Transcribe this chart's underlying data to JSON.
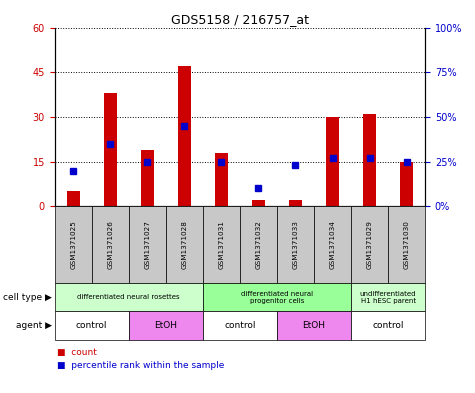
{
  "title": "GDS5158 / 216757_at",
  "samples": [
    "GSM1371025",
    "GSM1371026",
    "GSM1371027",
    "GSM1371028",
    "GSM1371031",
    "GSM1371032",
    "GSM1371033",
    "GSM1371034",
    "GSM1371029",
    "GSM1371030"
  ],
  "red_values": [
    5,
    38,
    19,
    47,
    18,
    2,
    2,
    30,
    31,
    15
  ],
  "blue_values_pct": [
    20,
    35,
    25,
    45,
    25,
    10,
    23,
    27,
    27,
    25
  ],
  "red_ylim": [
    0,
    60
  ],
  "blue_ylim": [
    0,
    100
  ],
  "red_yticks": [
    0,
    15,
    30,
    45,
    60
  ],
  "blue_yticks": [
    0,
    25,
    50,
    75,
    100
  ],
  "red_color": "#cc0000",
  "blue_color": "#0000cc",
  "bar_bg_color": "#c8c8c8",
  "cell_type_groups": [
    {
      "label": "differentiated neural rosettes",
      "start": 0,
      "end": 3,
      "color": "#ccffcc"
    },
    {
      "label": "differentiated neural\nprogenitor cells",
      "start": 4,
      "end": 7,
      "color": "#99ff99"
    },
    {
      "label": "undifferentiated\nH1 hESC parent",
      "start": 8,
      "end": 9,
      "color": "#ccffcc"
    }
  ],
  "agent_groups": [
    {
      "label": "control",
      "start": 0,
      "end": 1,
      "color": "#ffffff"
    },
    {
      "label": "EtOH",
      "start": 2,
      "end": 3,
      "color": "#ee88ee"
    },
    {
      "label": "control",
      "start": 4,
      "end": 5,
      "color": "#ffffff"
    },
    {
      "label": "EtOH",
      "start": 6,
      "end": 7,
      "color": "#ee88ee"
    },
    {
      "label": "control",
      "start": 8,
      "end": 9,
      "color": "#ffffff"
    }
  ],
  "legend_count_label": "count",
  "legend_pct_label": "percentile rank within the sample",
  "cell_type_label": "cell type",
  "agent_label": "agent",
  "bar_width": 0.35,
  "marker_size": 4
}
